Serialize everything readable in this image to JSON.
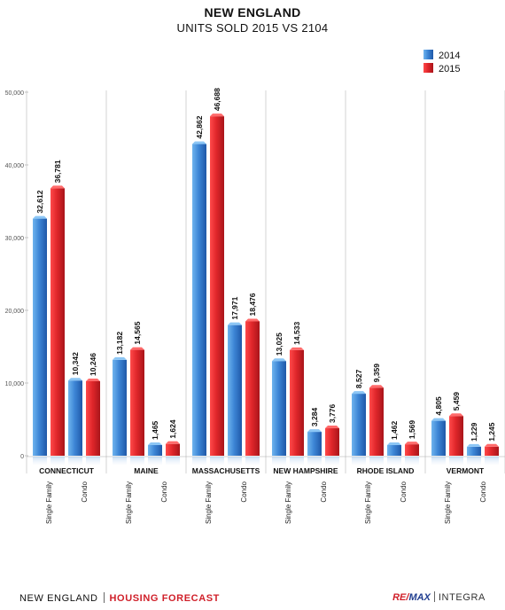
{
  "header": {
    "title": "NEW ENGLAND",
    "subtitle": "UNITS SOLD  2015 VS 2104"
  },
  "footer": {
    "left_brand": "NEW ENGLAND",
    "left_product": "HOUSING FORECAST",
    "right_brand_1": "RE/",
    "right_brand_2": "MAX",
    "right_brand_3": "INTEGRA"
  },
  "colors": {
    "series_2014": "#3f7fcf",
    "series_2015": "#e0262b",
    "grid": "#c8c8c8"
  },
  "chart_data": {
    "type": "bar",
    "title": "NEW ENGLAND",
    "subtitle": "UNITS SOLD  2015 VS 2104",
    "ylim": [
      0,
      50000
    ],
    "yticks": [
      0,
      10000,
      20000,
      30000,
      40000,
      50000
    ],
    "ytick_labels": [
      "0",
      "10,000",
      "20,000",
      "30,000",
      "40,000",
      "50,000"
    ],
    "grid": "vertical group separators",
    "legend_position": "top-right",
    "groups": [
      {
        "name": "CONNECTICUT",
        "categories": [
          "Single Family",
          "Condo"
        ]
      },
      {
        "name": "MAINE",
        "categories": [
          "Single Family",
          "Condo"
        ]
      },
      {
        "name": "MASSACHUSETTS",
        "categories": [
          "Single Family",
          "Condo"
        ]
      },
      {
        "name": "NEW HAMPSHIRE",
        "categories": [
          "Single Family",
          "Condo"
        ]
      },
      {
        "name": "RHODE ISLAND",
        "categories": [
          "Single Family",
          "Condo"
        ]
      },
      {
        "name": "VERMONT",
        "categories": [
          "Single Family",
          "Condo"
        ]
      }
    ],
    "series": [
      {
        "name": "2014",
        "values": [
          32612,
          10342,
          13182,
          1465,
          42862,
          17971,
          13025,
          3284,
          8527,
          1462,
          4805,
          1229
        ],
        "labels": [
          "32,612",
          "10,342",
          "13,182",
          "1,465",
          "42,862",
          "17,971",
          "13,025",
          "3,284",
          "8,527",
          "1,462",
          "4,805",
          "1,229"
        ]
      },
      {
        "name": "2015",
        "values": [
          36781,
          10246,
          14565,
          1624,
          46688,
          18476,
          14533,
          3776,
          9359,
          1569,
          5459,
          1245
        ],
        "labels": [
          "36,781",
          "10,246",
          "14,565",
          "1,624",
          "46,688",
          "18,476",
          "14,533",
          "3,776",
          "9,359",
          "1,569",
          "5,459",
          "1,245"
        ]
      }
    ]
  }
}
